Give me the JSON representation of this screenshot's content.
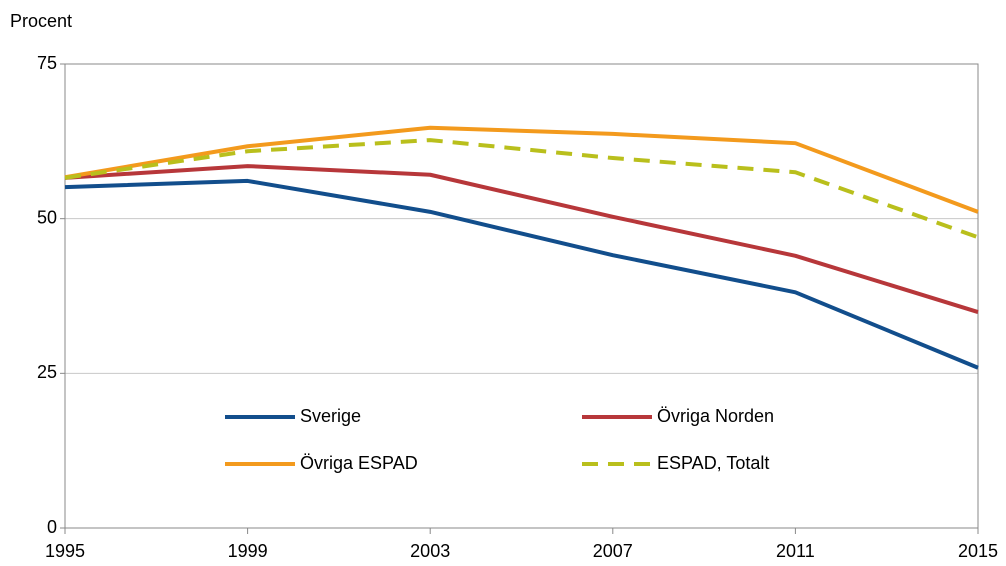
{
  "chart_data": {
    "type": "line",
    "y_label": "Procent",
    "x": [
      1995,
      1999,
      2003,
      2007,
      2011,
      2015
    ],
    "xlim": [
      1995,
      2015
    ],
    "xticks": [
      1995,
      1999,
      2003,
      2007,
      2011,
      2015
    ],
    "ylim": [
      0,
      75
    ],
    "yticks": [
      0,
      25,
      50,
      75
    ],
    "grid": true,
    "series": [
      {
        "name": "Sverige",
        "color": "#124e8c",
        "values": [
          55.1,
          56.1,
          51.1,
          44.1,
          38.1,
          25.9
        ]
      },
      {
        "name": "Övriga Norden",
        "color": "#b7373a",
        "values": [
          56.6,
          58.5,
          57.1,
          50.3,
          44.0,
          34.9
        ]
      },
      {
        "name": "Övriga ESPAD",
        "color": "#f39a1d",
        "values": [
          56.7,
          61.7,
          64.7,
          63.7,
          62.2,
          51.1
        ]
      },
      {
        "name": "ESPAD, Totalt",
        "color": "#b9bf1c",
        "dashed": true,
        "values": [
          56.6,
          60.9,
          62.7,
          59.8,
          57.5,
          47.0
        ]
      }
    ]
  }
}
